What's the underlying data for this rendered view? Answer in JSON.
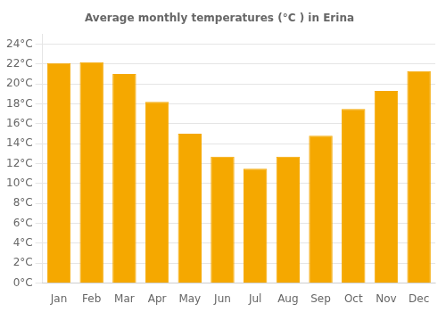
{
  "chart_data": {
    "type": "bar",
    "title": "Average monthly temperatures (°C ) in Erina",
    "categories": [
      "Jan",
      "Feb",
      "Mar",
      "Apr",
      "May",
      "Jun",
      "Jul",
      "Aug",
      "Sep",
      "Oct",
      "Nov",
      "Dec"
    ],
    "values": [
      22.1,
      22.2,
      21.0,
      18.2,
      15.0,
      12.7,
      11.5,
      12.7,
      14.8,
      17.5,
      19.3,
      21.3
    ],
    "color": "#F5A800",
    "ylim": [
      0,
      25
    ],
    "yticks": [
      {
        "value": 0,
        "label": "0°C"
      },
      {
        "value": 2,
        "label": "2°C"
      },
      {
        "value": 4,
        "label": "4°C"
      },
      {
        "value": 6,
        "label": "6°C"
      },
      {
        "value": 8,
        "label": "8°C"
      },
      {
        "value": 10,
        "label": "10°C"
      },
      {
        "value": 12,
        "label": "12°C"
      },
      {
        "value": 14,
        "label": "14°C"
      },
      {
        "value": 16,
        "label": "16°C"
      },
      {
        "value": 18,
        "label": "18°C"
      },
      {
        "value": 20,
        "label": "20°C"
      },
      {
        "value": 22,
        "label": "22°C"
      },
      {
        "value": 24,
        "label": "24°C"
      }
    ],
    "grid": true
  }
}
